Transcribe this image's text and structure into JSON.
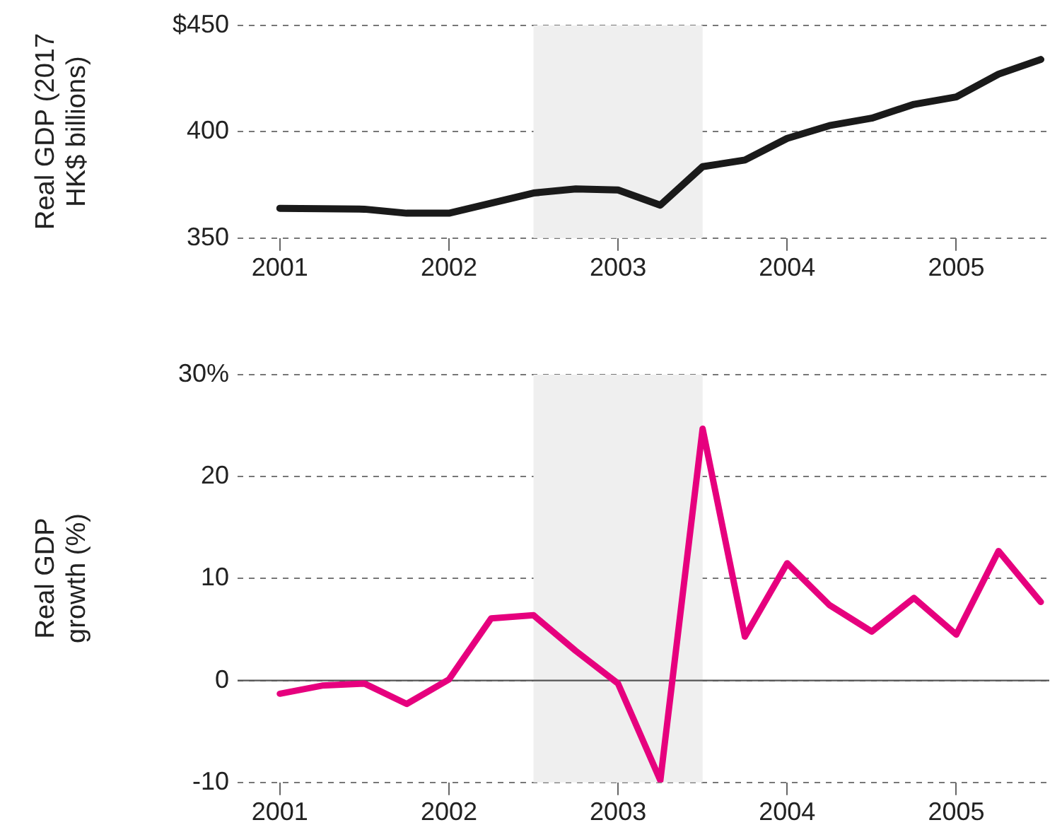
{
  "chart_data": [
    {
      "type": "line",
      "ylabel": "Real GDP (2017 HK$ billions)",
      "x": [
        2001,
        2001.25,
        2001.5,
        2001.75,
        2002,
        2002.25,
        2002.5,
        2002.75,
        2003,
        2003.25,
        2003.5,
        2003.75,
        2004,
        2004.25,
        2004.5,
        2004.75,
        2005,
        2005.25,
        2005.5
      ],
      "series": [
        {
          "color": "#1a1a1a",
          "values": [
            364,
            363.8,
            363.6,
            361.7,
            361.7,
            366.4,
            371.2,
            373.1,
            372.6,
            365.5,
            383.6,
            386.7,
            396.9,
            402.9,
            406.4,
            412.9,
            416.4,
            427.1,
            434
          ]
        }
      ],
      "xlim": [
        2000.75,
        2005.55
      ],
      "xticks": [
        2001,
        2002,
        2003,
        2004,
        2005
      ],
      "ylim": [
        350,
        450
      ],
      "yticks": [
        350,
        400,
        {
          "value": 450,
          "label": "$450"
        }
      ],
      "grid": "y",
      "bands": [
        {
          "axis": "x",
          "from": 2002.5,
          "to": 2003.5,
          "color": "#efefef"
        }
      ]
    },
    {
      "type": "line",
      "ylabel": "Real GDP growth (%)",
      "x": [
        2001,
        2001.25,
        2001.5,
        2001.75,
        2002,
        2002.25,
        2002.5,
        2002.75,
        2003,
        2003.25,
        2003.5,
        2003.75,
        2004,
        2004.25,
        2004.5,
        2004.75,
        2005,
        2005.25,
        2005.5
      ],
      "series": [
        {
          "color": "#e6007e",
          "values": [
            -1.3,
            -0.5,
            -0.3,
            -2.3,
            0.1,
            6.1,
            6.4,
            2.9,
            -0.3,
            -9.8,
            24.7,
            4.3,
            11.5,
            7.4,
            4.8,
            8.1,
            4.5,
            12.7,
            7.7
          ]
        }
      ],
      "xlim": [
        2000.75,
        2005.55
      ],
      "xticks": [
        2001,
        2002,
        2003,
        2004,
        2005
      ],
      "ylim": [
        -10,
        30
      ],
      "yticks": [
        -10,
        0,
        10,
        20,
        {
          "value": 30,
          "label": "30%"
        }
      ],
      "grid": "y",
      "bands": [
        {
          "axis": "x",
          "from": 2002.5,
          "to": 2003.5,
          "color": "#efefef"
        }
      ],
      "ref_lines": [
        {
          "axis": "y",
          "value": 0,
          "color": "#555555"
        }
      ]
    }
  ]
}
